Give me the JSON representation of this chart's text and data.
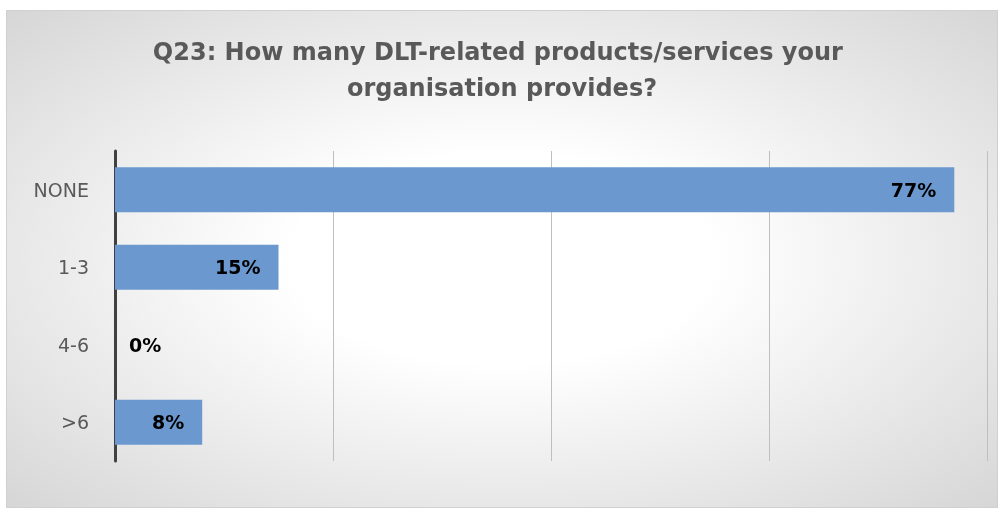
{
  "chart_data": {
    "type": "bar",
    "orientation": "horizontal",
    "title": "Q23: How many DLT-related products/services your organisation provides?",
    "categories": [
      "NONE",
      "1-3",
      "4-6",
      ">6"
    ],
    "values": [
      77,
      15,
      0,
      8
    ],
    "color": "#6a98cf",
    "value_labels": [
      "77%",
      "15%",
      "0%",
      "8%"
    ],
    "grid": "x",
    "tick_labels": "y"
  }
}
